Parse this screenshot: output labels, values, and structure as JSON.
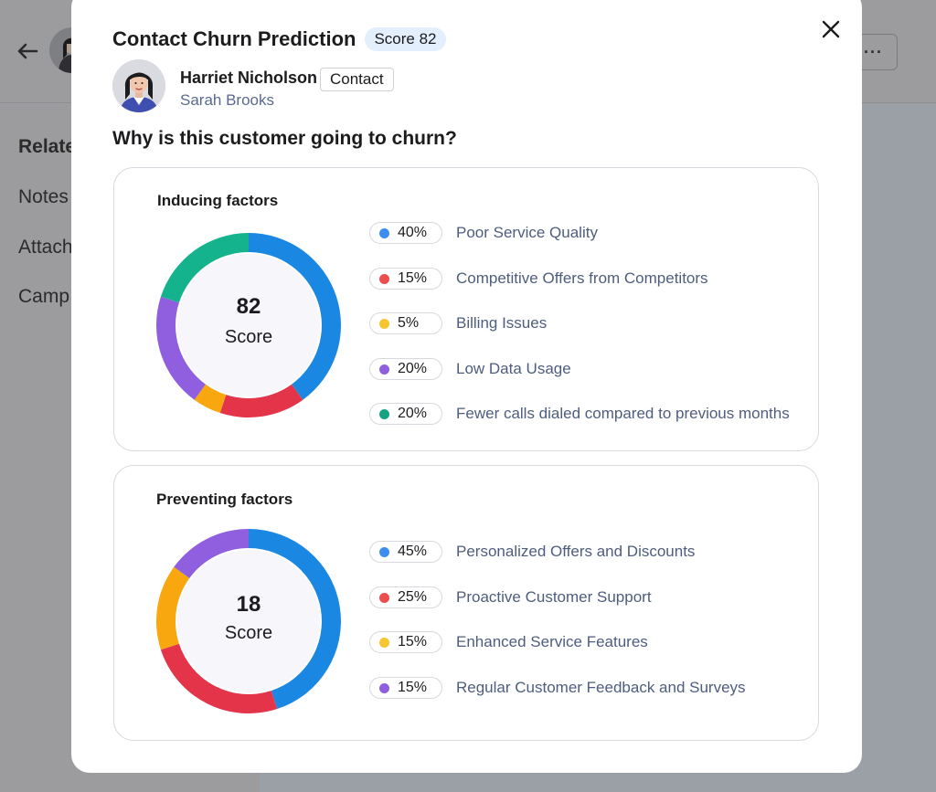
{
  "background": {
    "sidebar": {
      "items": [
        "Relate",
        "Notes",
        "Attach",
        "Camp"
      ]
    },
    "more_label": "···"
  },
  "modal": {
    "title": "Contact Churn Prediction",
    "score_badge": "Score 82",
    "person": {
      "name": "Harriet Nicholson",
      "tag": "Contact",
      "owner": "Sarah Brooks"
    },
    "question": "Why is this customer going to churn?"
  },
  "colors": {
    "blue": "#1a87e2",
    "red": "#e3344a",
    "yellow": "#f9a70e",
    "purple": "#8f5fe0",
    "green": "#14b38d",
    "dot_blue": "#3d8ef0",
    "dot_red": "#ee4d4d",
    "dot_yellow": "#f6c52f",
    "dot_purple": "#8f5fe0",
    "dot_green": "#13a383"
  },
  "chart_data": [
    {
      "type": "pie",
      "title": "Inducing factors",
      "center_value": "82",
      "center_label": "Score",
      "slices": [
        {
          "label": "Poor Service Quality",
          "value": 40,
          "display": "40%",
          "color": "blue"
        },
        {
          "label": "Competitive Offers from Competitors",
          "value": 15,
          "display": "15%",
          "color": "red"
        },
        {
          "label": "Billing Issues",
          "value": 5,
          "display": "5%",
          "color": "yellow"
        },
        {
          "label": "Low Data Usage",
          "value": 20,
          "display": "20%",
          "color": "purple"
        },
        {
          "label": "Fewer calls dialed compared to previous months",
          "value": 20,
          "display": "20%",
          "color": "green"
        }
      ]
    },
    {
      "type": "pie",
      "title": "Preventing factors",
      "center_value": "18",
      "center_label": "Score",
      "slices": [
        {
          "label": "Personalized Offers and Discounts",
          "value": 45,
          "display": "45%",
          "color": "blue"
        },
        {
          "label": "Proactive Customer Support",
          "value": 25,
          "display": "25%",
          "color": "red"
        },
        {
          "label": "Enhanced Service Features",
          "value": 15,
          "display": "15%",
          "color": "yellow"
        },
        {
          "label": "Regular Customer Feedback and Surveys",
          "value": 15,
          "display": "15%",
          "color": "purple"
        }
      ]
    }
  ]
}
